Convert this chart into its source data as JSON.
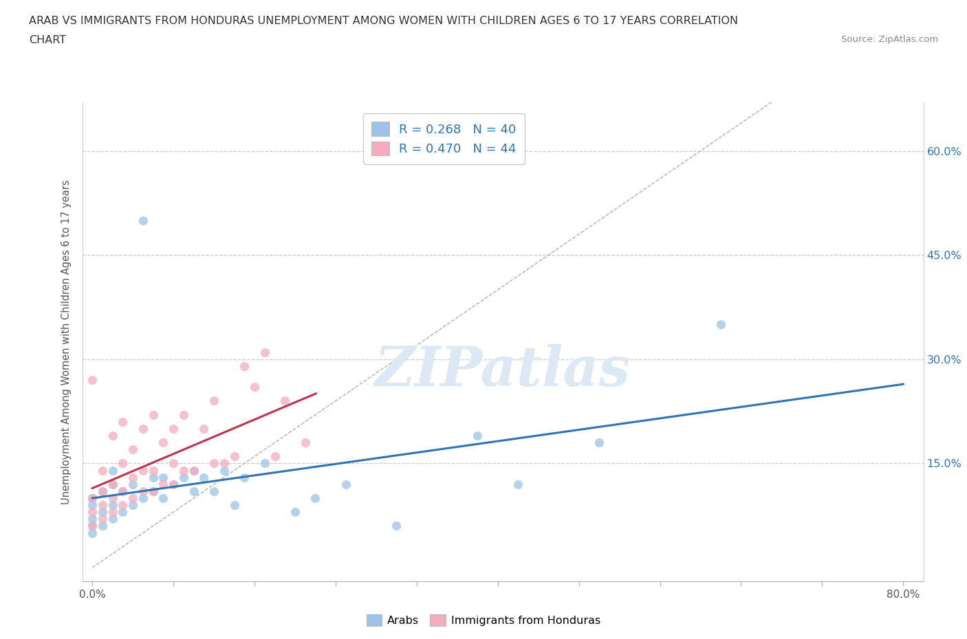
{
  "title_line1": "ARAB VS IMMIGRANTS FROM HONDURAS UNEMPLOYMENT AMONG WOMEN WITH CHILDREN AGES 6 TO 17 YEARS CORRELATION",
  "title_line2": "CHART",
  "source": "Source: ZipAtlas.com",
  "ylabel": "Unemployment Among Women with Children Ages 6 to 17 years",
  "xlim": [
    -0.01,
    0.82
  ],
  "ylim": [
    -0.02,
    0.67
  ],
  "ytick_positions": [
    0.15,
    0.3,
    0.45,
    0.6
  ],
  "ytick_labels": [
    "15.0%",
    "30.0%",
    "45.0%",
    "60.0%"
  ],
  "grid_color": "#cccccc",
  "grid_style": "--",
  "background_color": "#ffffff",
  "arab_color": "#9dc3e6",
  "honduras_color": "#f4acbe",
  "arab_line_color": "#2e74b5",
  "honduras_line_color": "#c0314e",
  "diagonal_color": "#b0b0b0",
  "legend_R1": "0.268",
  "legend_N1": "40",
  "legend_R2": "0.470",
  "legend_N2": "44",
  "arab_scatter_x": [
    0.0,
    0.0,
    0.0,
    0.0,
    0.0,
    0.01,
    0.01,
    0.01,
    0.02,
    0.02,
    0.02,
    0.02,
    0.03,
    0.03,
    0.04,
    0.04,
    0.05,
    0.05,
    0.06,
    0.06,
    0.07,
    0.07,
    0.08,
    0.09,
    0.1,
    0.1,
    0.11,
    0.12,
    0.13,
    0.14,
    0.15,
    0.17,
    0.2,
    0.22,
    0.25,
    0.3,
    0.38,
    0.42,
    0.5,
    0.62
  ],
  "arab_scatter_y": [
    0.05,
    0.06,
    0.07,
    0.09,
    0.1,
    0.06,
    0.08,
    0.11,
    0.07,
    0.09,
    0.12,
    0.14,
    0.08,
    0.11,
    0.09,
    0.12,
    0.1,
    0.5,
    0.11,
    0.13,
    0.1,
    0.13,
    0.12,
    0.13,
    0.11,
    0.14,
    0.13,
    0.11,
    0.14,
    0.09,
    0.13,
    0.15,
    0.08,
    0.1,
    0.12,
    0.06,
    0.19,
    0.12,
    0.18,
    0.35
  ],
  "honduras_scatter_x": [
    0.0,
    0.0,
    0.0,
    0.0,
    0.01,
    0.01,
    0.01,
    0.01,
    0.02,
    0.02,
    0.02,
    0.02,
    0.03,
    0.03,
    0.03,
    0.03,
    0.04,
    0.04,
    0.04,
    0.05,
    0.05,
    0.05,
    0.06,
    0.06,
    0.06,
    0.07,
    0.07,
    0.08,
    0.08,
    0.08,
    0.09,
    0.09,
    0.1,
    0.11,
    0.12,
    0.12,
    0.13,
    0.14,
    0.15,
    0.16,
    0.17,
    0.18,
    0.19,
    0.21
  ],
  "honduras_scatter_y": [
    0.06,
    0.08,
    0.1,
    0.27,
    0.07,
    0.09,
    0.11,
    0.14,
    0.08,
    0.1,
    0.12,
    0.19,
    0.09,
    0.11,
    0.15,
    0.21,
    0.1,
    0.13,
    0.17,
    0.11,
    0.14,
    0.2,
    0.11,
    0.14,
    0.22,
    0.12,
    0.18,
    0.12,
    0.15,
    0.2,
    0.14,
    0.22,
    0.14,
    0.2,
    0.15,
    0.24,
    0.15,
    0.16,
    0.29,
    0.26,
    0.31,
    0.16,
    0.24,
    0.18
  ]
}
